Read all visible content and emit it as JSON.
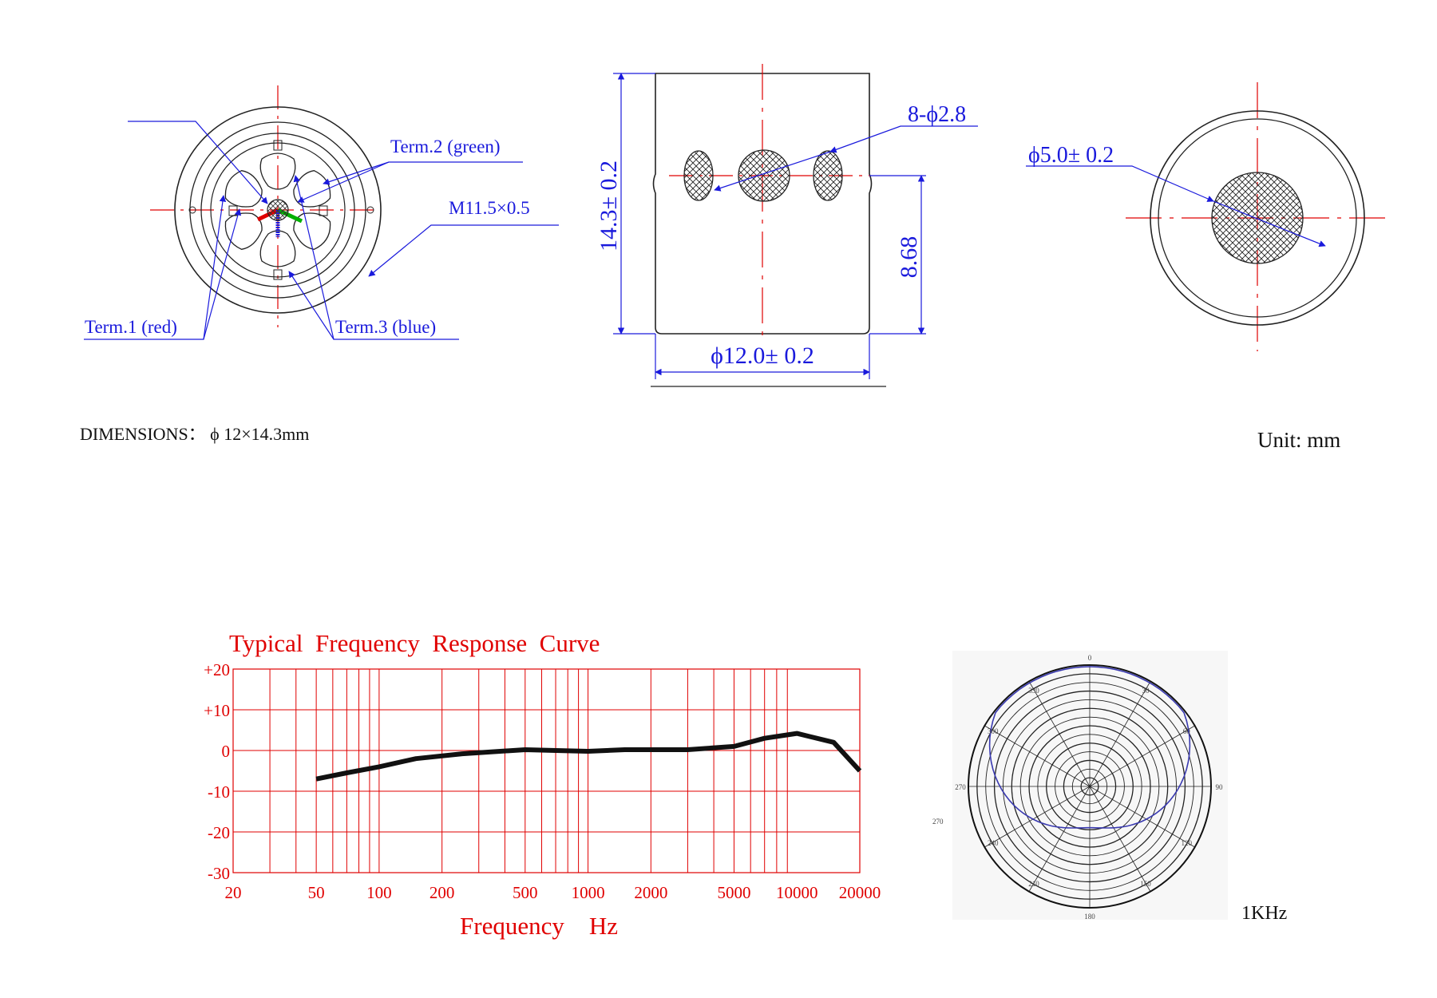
{
  "colors": {
    "annotation": "#1a1adc",
    "centerline": "#e00000",
    "outline": "#222222",
    "chart_grid": "#e00000",
    "curve": "#111111",
    "polar_pattern": "#3a3ab0",
    "term1": "#e00000",
    "term2": "#00b000",
    "term3": "#1a1adc"
  },
  "drawing": {
    "front_view": {
      "term2_label": "Term.2 (green)",
      "thread_label": "M11.5×0.5",
      "term1_label": "Term.1 (red)",
      "term3_label": "Term.3 (blue)"
    },
    "side_view": {
      "holes_label": "8-ϕ2.8",
      "height_label": "14.3± 0.2",
      "hole_height_label": "8.68",
      "diameter_label": "ϕ12.0± 0.2"
    },
    "rear_view": {
      "port_label": "ϕ5.0± 0.2"
    },
    "dimensions_text": "DIMENSIONS： ϕ 12×14.3mm",
    "unit_text": "Unit: mm"
  },
  "polar": {
    "angle_labels": [
      "0",
      "30",
      "60",
      "90",
      "120",
      "150",
      "180",
      "210",
      "240",
      "270",
      "300",
      "330"
    ],
    "stray_label": "270",
    "frequency_label": "1KHz"
  },
  "chart_data": {
    "type": "line",
    "title": "Typical  Frequency  Response  Curve",
    "xlabel": "Frequency    Hz",
    "ylabel": "",
    "x_scale": "log",
    "xlim": [
      20,
      20000
    ],
    "ylim": [
      -30,
      20
    ],
    "x_tick_labels": [
      "20",
      "50",
      "100",
      "200",
      "500",
      "1000",
      "2000",
      "5000",
      "10000",
      "20000"
    ],
    "y_tick_labels": [
      "+20",
      "+10",
      "0",
      "-10",
      "-20",
      "-30"
    ],
    "grid": true,
    "series": [
      {
        "x": [
          50,
          70,
          100,
          150,
          250,
          500,
          700,
          1000,
          1500,
          2000,
          3000,
          5000,
          7000,
          10000,
          15000,
          20000
        ],
        "y": [
          -7,
          -5.5,
          -4,
          -2,
          -0.8,
          0.2,
          0,
          -0.2,
          0.2,
          0.2,
          0.2,
          1,
          3,
          4.2,
          2,
          -5
        ]
      }
    ]
  }
}
